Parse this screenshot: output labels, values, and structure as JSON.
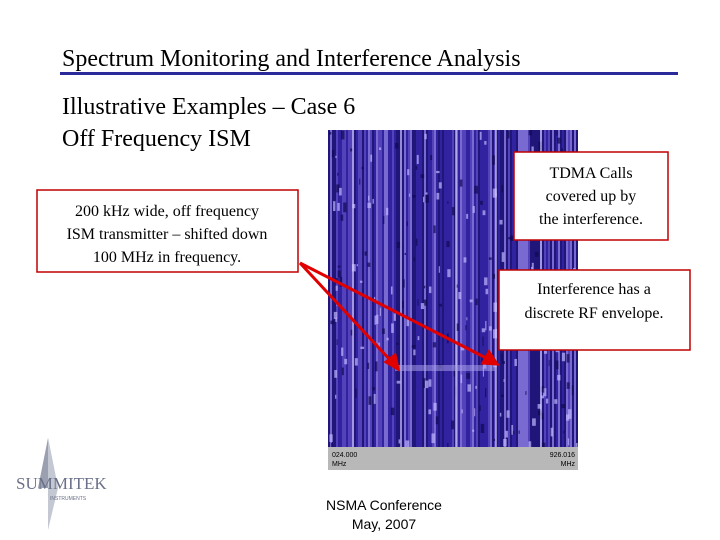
{
  "header": {
    "title": "Spectrum Monitoring and Interference Analysis",
    "subtitle": [
      "Illustrative Examples – Case 6",
      "Off Frequency ISM"
    ]
  },
  "callouts": [
    {
      "lines": [
        "200 kHz wide, off frequency",
        "ISM transmitter – shifted down",
        "100 MHz in frequency."
      ]
    },
    {
      "lines": [
        "TDMA Calls",
        "covered up by",
        "the interference."
      ]
    },
    {
      "lines": [
        "Interference has a",
        "discrete  RF envelope."
      ]
    }
  ],
  "spectrogram": {
    "left_label": [
      "024.000",
      "MHz"
    ],
    "right_label": [
      "926.016",
      "MHz"
    ]
  },
  "logo": {
    "name": "SUMMITEK",
    "sub": "INSTRUMENTS"
  },
  "footer": [
    "NSMA Conference",
    "May, 2007"
  ]
}
